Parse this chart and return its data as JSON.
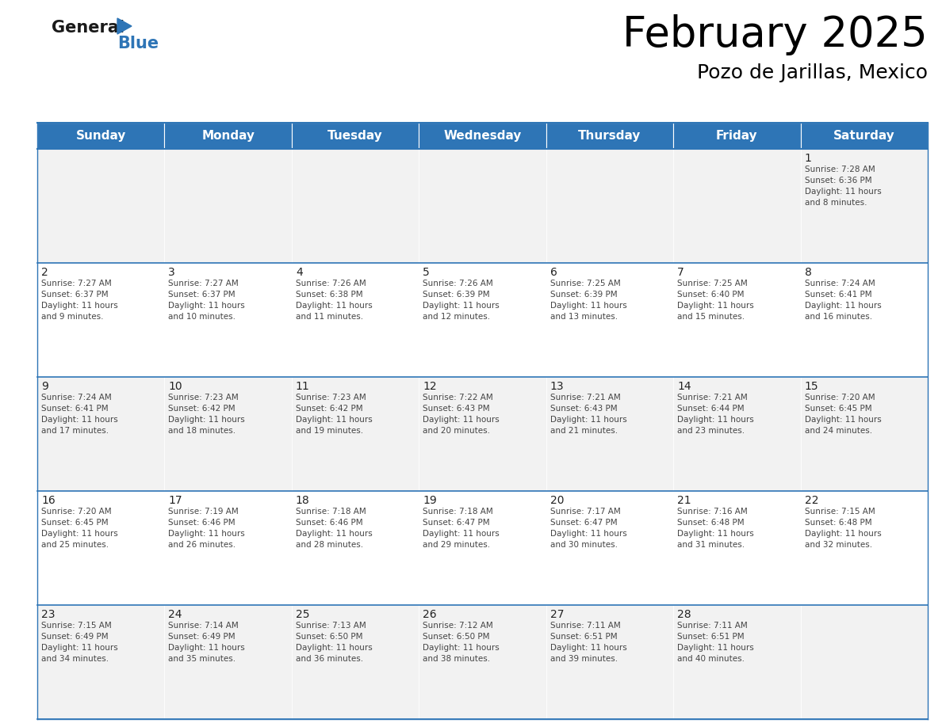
{
  "title": "February 2025",
  "subtitle": "Pozo de Jarillas, Mexico",
  "header_bg": "#2e75b6",
  "header_text_color": "#ffffff",
  "cell_bg_light": "#f2f2f2",
  "cell_bg_white": "#ffffff",
  "cell_border_color": "#2e75b6",
  "day_headers": [
    "Sunday",
    "Monday",
    "Tuesday",
    "Wednesday",
    "Thursday",
    "Friday",
    "Saturday"
  ],
  "calendar_data": [
    [
      {
        "day": "",
        "sunrise": "",
        "sunset": "",
        "daylight": ""
      },
      {
        "day": "",
        "sunrise": "",
        "sunset": "",
        "daylight": ""
      },
      {
        "day": "",
        "sunrise": "",
        "sunset": "",
        "daylight": ""
      },
      {
        "day": "",
        "sunrise": "",
        "sunset": "",
        "daylight": ""
      },
      {
        "day": "",
        "sunrise": "",
        "sunset": "",
        "daylight": ""
      },
      {
        "day": "",
        "sunrise": "",
        "sunset": "",
        "daylight": ""
      },
      {
        "day": "1",
        "sunrise": "7:28 AM",
        "sunset": "6:36 PM",
        "daylight": "11 hours and 8 minutes."
      }
    ],
    [
      {
        "day": "2",
        "sunrise": "7:27 AM",
        "sunset": "6:37 PM",
        "daylight": "11 hours and 9 minutes."
      },
      {
        "day": "3",
        "sunrise": "7:27 AM",
        "sunset": "6:37 PM",
        "daylight": "11 hours and 10 minutes."
      },
      {
        "day": "4",
        "sunrise": "7:26 AM",
        "sunset": "6:38 PM",
        "daylight": "11 hours and 11 minutes."
      },
      {
        "day": "5",
        "sunrise": "7:26 AM",
        "sunset": "6:39 PM",
        "daylight": "11 hours and 12 minutes."
      },
      {
        "day": "6",
        "sunrise": "7:25 AM",
        "sunset": "6:39 PM",
        "daylight": "11 hours and 13 minutes."
      },
      {
        "day": "7",
        "sunrise": "7:25 AM",
        "sunset": "6:40 PM",
        "daylight": "11 hours and 15 minutes."
      },
      {
        "day": "8",
        "sunrise": "7:24 AM",
        "sunset": "6:41 PM",
        "daylight": "11 hours and 16 minutes."
      }
    ],
    [
      {
        "day": "9",
        "sunrise": "7:24 AM",
        "sunset": "6:41 PM",
        "daylight": "11 hours and 17 minutes."
      },
      {
        "day": "10",
        "sunrise": "7:23 AM",
        "sunset": "6:42 PM",
        "daylight": "11 hours and 18 minutes."
      },
      {
        "day": "11",
        "sunrise": "7:23 AM",
        "sunset": "6:42 PM",
        "daylight": "11 hours and 19 minutes."
      },
      {
        "day": "12",
        "sunrise": "7:22 AM",
        "sunset": "6:43 PM",
        "daylight": "11 hours and 20 minutes."
      },
      {
        "day": "13",
        "sunrise": "7:21 AM",
        "sunset": "6:43 PM",
        "daylight": "11 hours and 21 minutes."
      },
      {
        "day": "14",
        "sunrise": "7:21 AM",
        "sunset": "6:44 PM",
        "daylight": "11 hours and 23 minutes."
      },
      {
        "day": "15",
        "sunrise": "7:20 AM",
        "sunset": "6:45 PM",
        "daylight": "11 hours and 24 minutes."
      }
    ],
    [
      {
        "day": "16",
        "sunrise": "7:20 AM",
        "sunset": "6:45 PM",
        "daylight": "11 hours and 25 minutes."
      },
      {
        "day": "17",
        "sunrise": "7:19 AM",
        "sunset": "6:46 PM",
        "daylight": "11 hours and 26 minutes."
      },
      {
        "day": "18",
        "sunrise": "7:18 AM",
        "sunset": "6:46 PM",
        "daylight": "11 hours and 28 minutes."
      },
      {
        "day": "19",
        "sunrise": "7:18 AM",
        "sunset": "6:47 PM",
        "daylight": "11 hours and 29 minutes."
      },
      {
        "day": "20",
        "sunrise": "7:17 AM",
        "sunset": "6:47 PM",
        "daylight": "11 hours and 30 minutes."
      },
      {
        "day": "21",
        "sunrise": "7:16 AM",
        "sunset": "6:48 PM",
        "daylight": "11 hours and 31 minutes."
      },
      {
        "day": "22",
        "sunrise": "7:15 AM",
        "sunset": "6:48 PM",
        "daylight": "11 hours and 32 minutes."
      }
    ],
    [
      {
        "day": "23",
        "sunrise": "7:15 AM",
        "sunset": "6:49 PM",
        "daylight": "11 hours and 34 minutes."
      },
      {
        "day": "24",
        "sunrise": "7:14 AM",
        "sunset": "6:49 PM",
        "daylight": "11 hours and 35 minutes."
      },
      {
        "day": "25",
        "sunrise": "7:13 AM",
        "sunset": "6:50 PM",
        "daylight": "11 hours and 36 minutes."
      },
      {
        "day": "26",
        "sunrise": "7:12 AM",
        "sunset": "6:50 PM",
        "daylight": "11 hours and 38 minutes."
      },
      {
        "day": "27",
        "sunrise": "7:11 AM",
        "sunset": "6:51 PM",
        "daylight": "11 hours and 39 minutes."
      },
      {
        "day": "28",
        "sunrise": "7:11 AM",
        "sunset": "6:51 PM",
        "daylight": "11 hours and 40 minutes."
      },
      {
        "day": "",
        "sunrise": "",
        "sunset": "",
        "daylight": ""
      }
    ]
  ],
  "logo_general_color": "#1a1a1a",
  "logo_blue_color": "#2e75b6",
  "logo_triangle_color": "#2e75b6",
  "title_fontsize": 38,
  "subtitle_fontsize": 18,
  "header_fontsize": 11,
  "day_num_fontsize": 10,
  "cell_text_fontsize": 7.5
}
